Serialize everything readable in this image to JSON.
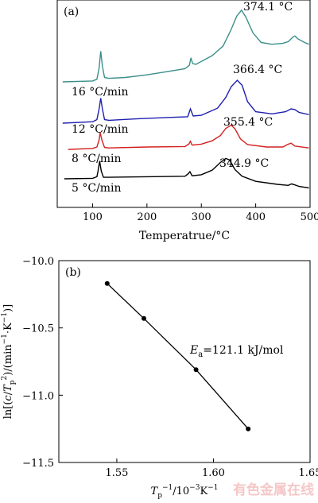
{
  "chart_data": [
    {
      "panel_label": "(a)",
      "type": "line",
      "xlabel": "Temperatrue/°C",
      "ylabel": "",
      "xlim": [
        35,
        500
      ],
      "xticks": [
        100,
        200,
        300,
        400,
        500
      ],
      "yticks_shown": false,
      "grid": false,
      "series": [
        {
          "name": "16 °C/min",
          "color": "#3a8f8a",
          "peak_label": "374.1 °C",
          "x": [
            45,
            100,
            108,
            112,
            115,
            118,
            122,
            130,
            160,
            200,
            240,
            270,
            278,
            281,
            284,
            290,
            320,
            340,
            355,
            365,
            374,
            382,
            395,
            410,
            430,
            450,
            460,
            468,
            472,
            478,
            490,
            498
          ],
          "y": [
            0.0,
            0.02,
            0.06,
            0.32,
            0.7,
            0.36,
            0.1,
            0.08,
            0.1,
            0.16,
            0.24,
            0.3,
            0.38,
            0.55,
            0.42,
            0.4,
            0.6,
            0.82,
            1.2,
            1.5,
            1.64,
            1.48,
            1.12,
            0.9,
            0.86,
            0.88,
            0.92,
            1.02,
            1.05,
            0.98,
            0.9,
            0.86
          ]
        },
        {
          "name": "12 °C/min",
          "color": "#1f1fb0",
          "peak_label": "366.4 °C",
          "x": [
            45,
            100,
            108,
            112,
            115,
            118,
            122,
            130,
            180,
            240,
            275,
            280,
            285,
            300,
            330,
            345,
            355,
            366,
            375,
            385,
            400,
            430,
            455,
            465,
            472,
            480,
            498
          ],
          "y": [
            0.0,
            0.04,
            0.1,
            0.4,
            0.7,
            0.4,
            0.1,
            0.08,
            0.12,
            0.16,
            0.18,
            0.4,
            0.2,
            0.22,
            0.42,
            0.72,
            1.02,
            1.2,
            1.06,
            0.6,
            0.32,
            0.26,
            0.32,
            0.4,
            0.38,
            0.3,
            0.24
          ]
        },
        {
          "name": "8 °C/min",
          "color": "#d42020",
          "peak_label": "355.4 °C",
          "x": [
            55,
            100,
            108,
            112,
            114,
            117,
            122,
            130,
            200,
            270,
            277,
            280,
            283,
            300,
            320,
            335,
            345,
            355,
            362,
            372,
            385,
            420,
            450,
            458,
            465,
            472,
            498
          ],
          "y": [
            0.0,
            0.04,
            0.1,
            0.4,
            0.7,
            0.4,
            0.08,
            0.06,
            0.1,
            0.12,
            0.22,
            0.34,
            0.18,
            0.22,
            0.36,
            0.58,
            0.88,
            1.02,
            0.86,
            0.44,
            0.2,
            0.1,
            0.1,
            0.2,
            0.26,
            0.14,
            0.06
          ]
        },
        {
          "name": "5 °C/min",
          "color": "#000000",
          "peak_label": "344.9 °C",
          "x": [
            48,
            100,
            108,
            110,
            113,
            116,
            120,
            130,
            200,
            270,
            276,
            279,
            283,
            300,
            320,
            335,
            345,
            352,
            362,
            375,
            400,
            440,
            460,
            466,
            472,
            480,
            498
          ],
          "y": [
            0.0,
            0.02,
            0.08,
            0.3,
            0.7,
            0.3,
            0.06,
            0.06,
            0.08,
            0.1,
            0.2,
            0.28,
            0.12,
            0.16,
            0.34,
            0.64,
            0.8,
            0.74,
            0.36,
            0.1,
            -0.1,
            -0.22,
            -0.26,
            -0.2,
            -0.24,
            -0.3,
            -0.36
          ]
        }
      ]
    },
    {
      "panel_label": "(b)",
      "type": "line",
      "xlabel": "T_p^{-1}/10^{-3}K^{-1}",
      "ylabel": "ln[(c/T_p^2)/(min^{-1}·K^{-1})]",
      "xlim": [
        1.52,
        1.65
      ],
      "ylim": [
        -11.5,
        -10.0
      ],
      "xticks": [
        1.55,
        1.6,
        1.65
      ],
      "yticks": [
        -10.0,
        -10.5,
        -11.0,
        -11.5
      ],
      "grid": false,
      "annotation": "E_a=121.1 kJ/mol",
      "annotation_text": "=121.1 kJ/mol",
      "series": [
        {
          "name": "",
          "x": [
            1.545,
            1.564,
            1.591,
            1.618
          ],
          "y": [
            -10.17,
            -10.43,
            -10.81,
            -11.25
          ]
        }
      ]
    }
  ],
  "labels": {
    "panel_a": "(a)",
    "panel_b": "(b)",
    "xlabel_a": "Temperatrue/°C",
    "xticks_a": [
      "100",
      "200",
      "300",
      "400",
      "500"
    ],
    "rates": [
      "16 °C/min",
      "12 °C/min",
      "8 °C/min",
      "5 °C/min"
    ],
    "peaks": [
      "374.1 °C",
      "366.4 °C",
      "355.4 °C",
      "344.9 °C"
    ],
    "yticks_b": [
      "−10.0",
      "−10.5",
      "−11.0",
      "−11.5"
    ],
    "xticks_b": [
      "1.55",
      "1.60",
      "1.65"
    ],
    "ea_prefix": "E",
    "ea_sub": "a",
    "ea_value": "=121.1 kJ/mol",
    "ylabel_b_prefix": "ln[(",
    "ylabel_b_c": "c",
    "ylabel_b_slash": "/",
    "ylabel_b_T": "T",
    "ylabel_b_p": "p",
    "ylabel_b_2": "2",
    "ylabel_b_mid": ")/(min",
    "ylabel_b_exp1": "−1",
    "ylabel_b_dot": "·K",
    "ylabel_b_exp2": "−1",
    "ylabel_b_end": ")]",
    "xlabel_b_T": "T",
    "xlabel_b_p": "p",
    "xlabel_b_exp": "−1",
    "xlabel_b_unit": "/10",
    "xlabel_b_exp2": "−3",
    "xlabel_b_K": "K",
    "xlabel_b_exp3": "−1"
  },
  "watermark": "有色金属在线"
}
